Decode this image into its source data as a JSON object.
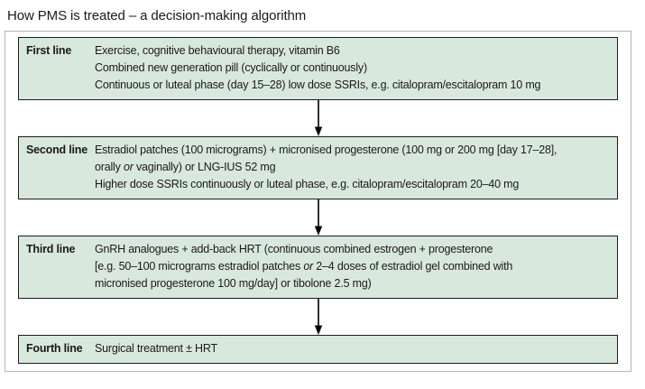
{
  "title": "How PMS is treated – a decision-making algorithm",
  "colors": {
    "box_fill": "#d9e8dd",
    "box_border": "#1c1c1c",
    "container_border": "#b5b5b5",
    "text": "#1a1a1a",
    "arrow": "#000000"
  },
  "algorithm": {
    "steps": [
      {
        "label": "First line",
        "lines": [
          [
            {
              "text": "Exercise, cognitive behavioural therapy, vitamin B6"
            }
          ],
          [
            {
              "text": "Combined new generation pill (cyclically or continuously)"
            }
          ],
          [
            {
              "text": "Continuous or luteal phase (day 15–28) low dose SSRIs, e.g. citalopram/escitalopram 10 mg"
            }
          ]
        ]
      },
      {
        "label": "Second line",
        "lines": [
          [
            {
              "text": "Estradiol patches (100 micrograms) + micronised progesterone (100 mg or 200 mg [day 17–28],"
            }
          ],
          [
            {
              "text": "orally "
            },
            {
              "text": "or",
              "italic": true
            },
            {
              "text": " vaginally) or LNG-IUS 52 mg"
            }
          ],
          [
            {
              "text": "Higher dose SSRIs continuously or luteal phase, e.g. citalopram/escitalopram 20–40 mg"
            }
          ]
        ]
      },
      {
        "label": "Third line",
        "lines": [
          [
            {
              "text": "GnRH analogues + add-back HRT (continuous combined estrogen + progesterone"
            }
          ],
          [
            {
              "text": "[e.g. 50–100 micrograms estradiol patches "
            },
            {
              "text": "or",
              "italic": true
            },
            {
              "text": " 2–4 doses of estradiol gel combined with"
            }
          ],
          [
            {
              "text": "micronised progesterone 100 mg/day] or tibolone 2.5 mg)"
            }
          ]
        ]
      },
      {
        "label": "Fourth line",
        "lines": [
          [
            {
              "text": "Surgical treatment ± HRT"
            }
          ]
        ]
      }
    ]
  }
}
